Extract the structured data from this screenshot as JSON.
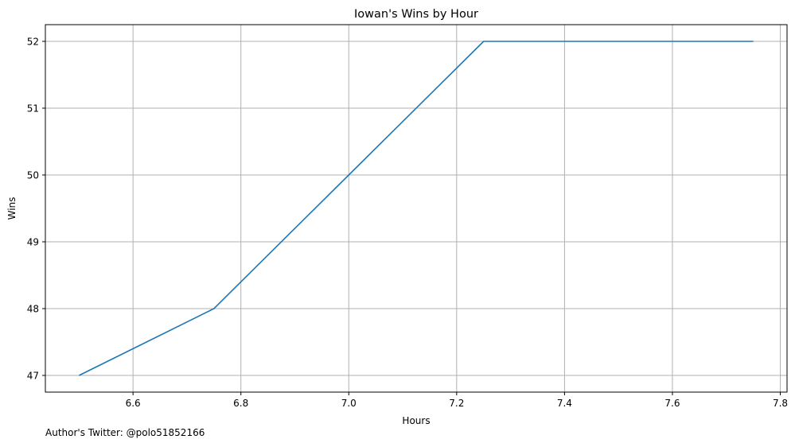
{
  "chart_data": {
    "type": "line",
    "title": "Iowan's Wins by Hour",
    "xlabel": "Hours",
    "ylabel": "Wins",
    "x": [
      6.5,
      6.75,
      7.0,
      7.25,
      7.5,
      7.75
    ],
    "series": [
      {
        "name": "Wins",
        "color": "#1f77b4",
        "values": [
          47,
          48,
          50,
          52,
          52,
          52
        ]
      }
    ],
    "xlim": [
      6.4375,
      7.8125
    ],
    "ylim": [
      46.75,
      52.25
    ],
    "xticks": [
      6.6,
      6.8,
      7.0,
      7.2,
      7.4,
      7.6,
      7.8
    ],
    "xtick_labels": [
      "6.6",
      "6.8",
      "7.0",
      "7.2",
      "7.4",
      "7.6",
      "7.8"
    ],
    "yticks": [
      47,
      48,
      49,
      50,
      51,
      52
    ],
    "ytick_labels": [
      "47",
      "48",
      "49",
      "50",
      "51",
      "52"
    ],
    "grid": true
  },
  "footer": {
    "note": "Author's Twitter: @polo51852166"
  }
}
